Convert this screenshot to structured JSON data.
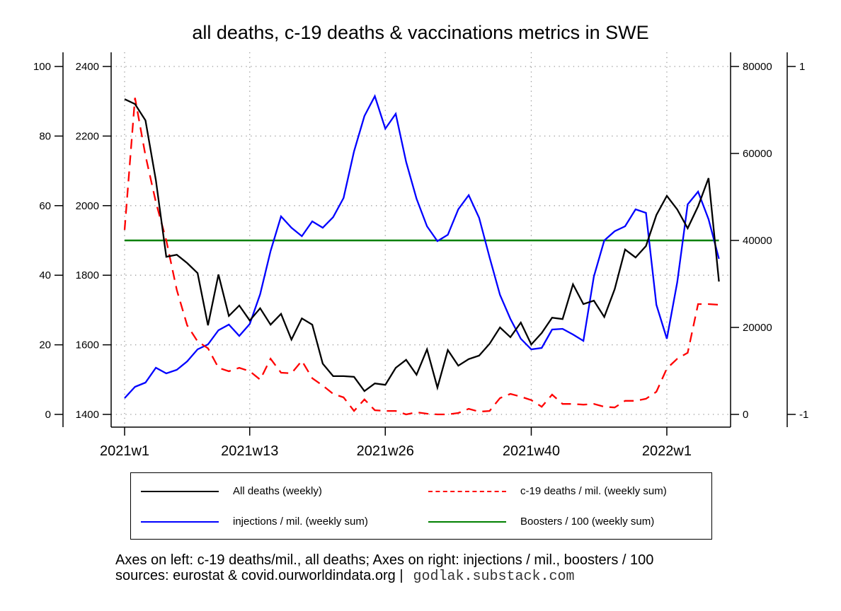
{
  "chart_data": {
    "type": "line",
    "title": "all deaths, c-19 deaths & vaccinations metrics in SWE",
    "x_tick_labels": [
      "2021w1",
      "2021w13",
      "2021w26",
      "2021w40",
      "2022w1"
    ],
    "x_tick_index": [
      0,
      12,
      25,
      39,
      52
    ],
    "n_weeks": 58,
    "axes": {
      "left_outer": {
        "ticks": [
          0,
          20,
          40,
          60,
          80,
          100
        ],
        "range": [
          0,
          100
        ],
        "label": "c-19 deaths/mil."
      },
      "left_inner": {
        "ticks": [
          1400,
          1600,
          1800,
          2000,
          2200,
          2400
        ],
        "range": [
          1400,
          2400
        ],
        "label": "all deaths"
      },
      "right_inner": {
        "ticks": [
          0,
          20000,
          40000,
          60000,
          80000
        ],
        "range": [
          0,
          80000
        ],
        "label": "injections / mil."
      },
      "right_outer": {
        "ticks": [
          -1,
          1
        ],
        "range": [
          -1,
          1
        ],
        "label": "boosters / 100"
      }
    },
    "grid": true,
    "series": [
      {
        "name": "All deaths (weekly)",
        "axis": "left_inner",
        "color": "#000000",
        "dash": "solid",
        "values": [
          2306,
          2292,
          2245,
          2073,
          1853,
          1859,
          1835,
          1806,
          1656,
          1802,
          1683,
          1713,
          1670,
          1705,
          1658,
          1689,
          1615,
          1676,
          1658,
          1546,
          1510,
          1510,
          1508,
          1467,
          1489,
          1485,
          1534,
          1557,
          1514,
          1587,
          1477,
          1585,
          1540,
          1559,
          1569,
          1603,
          1650,
          1622,
          1664,
          1601,
          1634,
          1678,
          1674,
          1774,
          1717,
          1727,
          1680,
          1760,
          1874,
          1851,
          1884,
          1973,
          2028,
          1989,
          1935,
          1998,
          2079,
          1782
        ]
      },
      {
        "name": "c-19 deaths / mil. (weekly sum)",
        "axis": "left_outer",
        "color": "#ff0000",
        "dash": "dashed",
        "values": [
          53,
          91,
          74.4,
          61,
          50,
          35.8,
          25.6,
          21,
          19,
          13.4,
          12.4,
          13.4,
          12.4,
          10,
          16,
          12,
          11.8,
          15.4,
          10.4,
          8.3,
          5.9,
          4.9,
          1,
          4.3,
          1.2,
          1,
          1,
          0,
          0.6,
          0.2,
          0,
          0,
          0.4,
          1.6,
          0.8,
          1,
          4.7,
          5.9,
          5.1,
          4.1,
          2.2,
          5.7,
          3,
          3,
          2.8,
          3,
          2.2,
          2,
          3.9,
          3.9,
          4.5,
          6.5,
          13.2,
          16,
          17.7,
          31.7,
          31.7,
          31.5
        ]
      },
      {
        "name": "injections / mil. (weekly sum)",
        "axis": "right_inner",
        "color": "#0000ff",
        "dash": "solid",
        "values": [
          3740,
          6340,
          7320,
          10730,
          9430,
          10240,
          12200,
          14960,
          16100,
          19350,
          20650,
          18050,
          20800,
          27640,
          37560,
          45530,
          42930,
          40980,
          44390,
          42930,
          45370,
          49760,
          60490,
          68620,
          73170,
          65690,
          69110,
          58050,
          49590,
          43250,
          39840,
          41300,
          47150,
          50410,
          45200,
          36100,
          27480,
          21950,
          17400,
          14960,
          15280,
          19510,
          19670,
          18370,
          16910,
          31700,
          40000,
          42110,
          43250,
          47150,
          46340,
          25200,
          17400,
          30400,
          48290,
          51220,
          44880,
          35770
        ]
      },
      {
        "name": "Boosters / 100 (weekly sum)",
        "axis": "right_outer",
        "color": "#008000",
        "dash": "solid",
        "values": [
          0,
          0,
          0,
          0,
          0,
          0,
          0,
          0,
          0,
          0,
          0,
          0,
          0,
          0,
          0,
          0,
          0,
          0,
          0,
          0,
          0,
          0,
          0,
          0,
          0,
          0,
          0,
          0,
          0,
          0,
          0,
          0,
          0,
          0,
          0,
          0,
          0,
          0,
          0,
          0,
          0,
          0,
          0,
          0,
          0,
          0,
          0,
          0,
          0,
          0,
          0,
          0,
          0,
          0,
          0,
          0,
          0,
          0
        ]
      }
    ],
    "legend": [
      "All deaths (weekly)",
      "c-19 deaths / mil. (weekly sum)",
      "injections / mil. (weekly sum)",
      "Boosters / 100 (weekly sum)"
    ],
    "legend_position": "bottom"
  },
  "footer": {
    "line1": "Axes on left: c-19 deaths/mil., all deaths; Axes on right: injections / mil., boosters / 100",
    "line2": "sources: eurostat & covid.ourworldindata.org |",
    "credit": "godlak.substack.com"
  }
}
